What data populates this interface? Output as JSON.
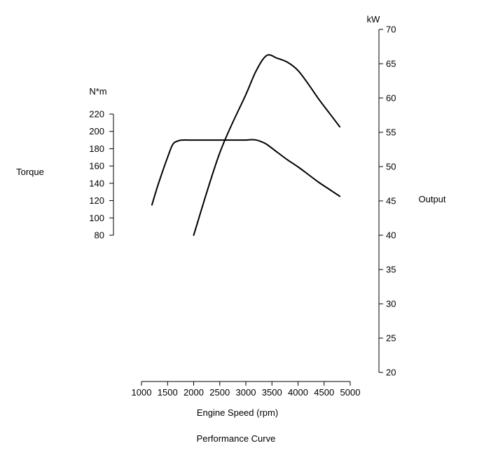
{
  "chart_data": {
    "type": "line",
    "title": "Performance Curve",
    "xlabel": "Engine Speed (rpm)",
    "x_ticks": [
      1000,
      1500,
      2000,
      2500,
      3000,
      3500,
      4000,
      4500,
      5000
    ],
    "xlim": [
      1000,
      5000
    ],
    "left_axis": {
      "label": "Torque",
      "unit": "N*m",
      "ticks": [
        80,
        100,
        120,
        140,
        160,
        180,
        200,
        220
      ],
      "ylim": [
        80,
        220
      ]
    },
    "right_axis": {
      "label": "Output",
      "unit": "kW",
      "ticks": [
        20,
        25,
        30,
        35,
        40,
        45,
        50,
        55,
        60,
        65,
        70
      ],
      "ylim": [
        20,
        70
      ]
    },
    "grid": false,
    "series": [
      {
        "name": "Torque",
        "axis": "left",
        "x": [
          1200,
          1300,
          1400,
          1500,
          1600,
          1700,
          1800,
          1900,
          2000,
          2200,
          2500,
          2800,
          3000,
          3100,
          3200,
          3300,
          3400,
          3600,
          3800,
          4000,
          4200,
          4400,
          4600,
          4800
        ],
        "y": [
          115,
          135,
          153,
          170,
          185,
          189,
          190,
          190,
          190,
          190,
          190,
          190,
          190,
          190.5,
          190,
          188,
          185,
          176,
          167,
          159,
          150,
          141,
          133,
          125
        ]
      },
      {
        "name": "Output",
        "axis": "right",
        "x": [
          2000,
          2500,
          3000,
          3200,
          3400,
          3600,
          3800,
          4000,
          4200,
          4400,
          4600,
          4800
        ],
        "y": [
          40,
          52,
          60.5,
          64,
          66.2,
          65.8,
          65.2,
          64,
          62,
          59.8,
          57.8,
          55.8
        ]
      }
    ]
  }
}
